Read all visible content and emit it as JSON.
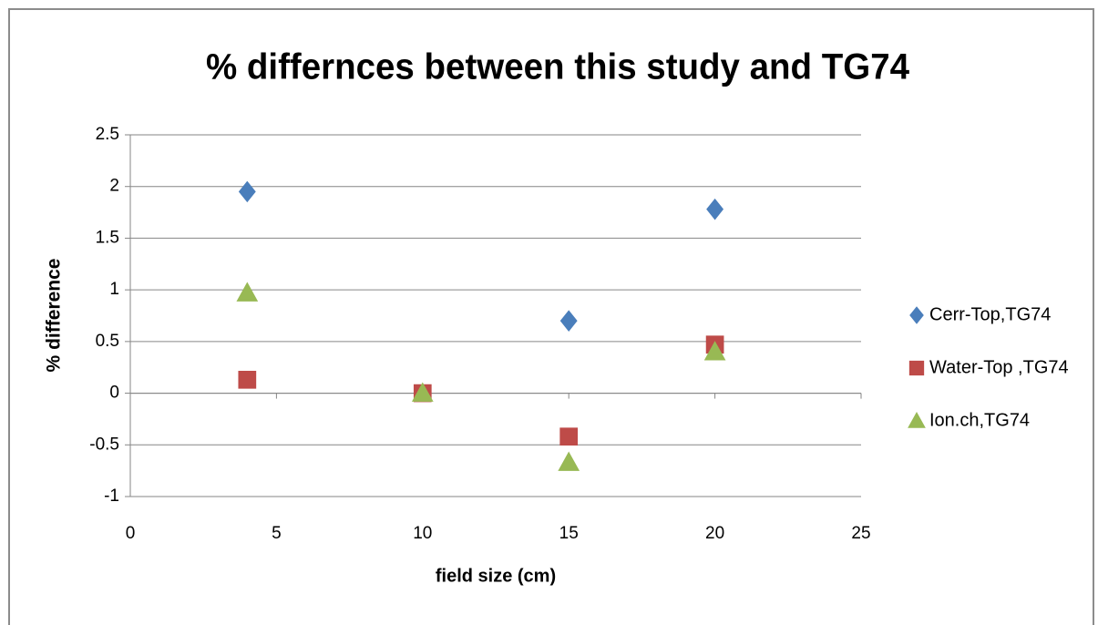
{
  "chart_data": {
    "type": "scatter",
    "title": "% differnces between this study and TG74",
    "xlabel": "field size (cm)",
    "ylabel": "% difference",
    "xlim": [
      0,
      25
    ],
    "xticks": [
      0,
      5,
      10,
      15,
      20,
      25
    ],
    "ylim": [
      -1,
      2.5
    ],
    "yticks": [
      -1,
      -0.5,
      0,
      0.5,
      1,
      1.5,
      2,
      2.5
    ],
    "grid": true,
    "legend": "right",
    "series": [
      {
        "name": "Cerr-Top,TG74",
        "color": "#4a7ebb",
        "marker": "diamond",
        "x": [
          4,
          15,
          20
        ],
        "values": [
          1.95,
          0.7,
          1.78
        ]
      },
      {
        "name": "Water-Top ,TG74",
        "color": "#be4b48",
        "marker": "square",
        "x": [
          4,
          10,
          15,
          20
        ],
        "values": [
          0.13,
          0,
          -0.42,
          0.47
        ]
      },
      {
        "name": "Ion.ch,TG74",
        "color": "#98b954",
        "marker": "triangle",
        "x": [
          4,
          10,
          15,
          20
        ],
        "values": [
          0.97,
          0,
          -0.67,
          0.4
        ]
      }
    ]
  }
}
